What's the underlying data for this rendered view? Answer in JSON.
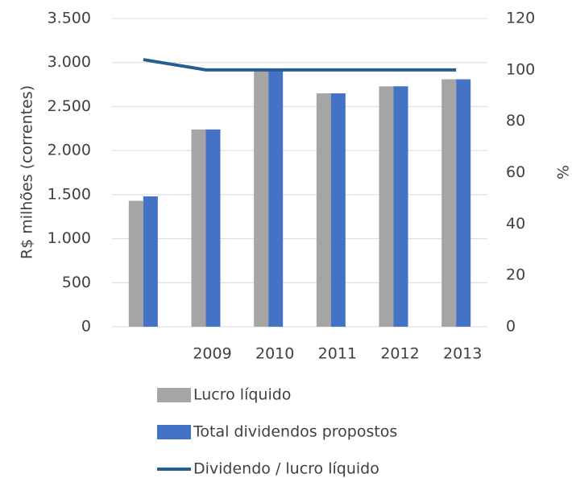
{
  "chart_data": {
    "type": "bar",
    "categories": [
      null,
      "2009",
      "2010",
      "2011",
      "2012",
      "2013"
    ],
    "series": [
      {
        "name": "Lucro líquido",
        "type": "bar",
        "color": "#a5a5a5",
        "values": [
          1430,
          2240,
          2920,
          2650,
          2730,
          2810
        ]
      },
      {
        "name": "Total dividendos propostos",
        "type": "bar",
        "color": "#4472c4",
        "values": [
          1480,
          2240,
          2920,
          2650,
          2730,
          2810
        ]
      },
      {
        "name": "Dividendo / lucro líquido",
        "type": "line",
        "axis": "y2",
        "color": "#255e91",
        "values": [
          104,
          100,
          100,
          100,
          100,
          100
        ]
      }
    ],
    "ylabel": "R$ milhões (correntes)",
    "y2label": "%",
    "ylim": [
      0,
      3500
    ],
    "yticks": [
      0,
      500,
      {
        "value": 1000,
        "label": "1.000"
      },
      {
        "value": 1500,
        "label": "1.500"
      },
      {
        "value": 2000,
        "label": "2.000"
      },
      {
        "value": 2500,
        "label": "2.500"
      },
      {
        "value": 3000,
        "label": "3.000"
      },
      {
        "value": 3500,
        "label": "3.500"
      }
    ],
    "y2lim": [
      0,
      120
    ],
    "y2ticks": [
      0,
      20,
      40,
      60,
      80,
      100,
      120
    ],
    "grid": true,
    "legend": "bottom"
  }
}
